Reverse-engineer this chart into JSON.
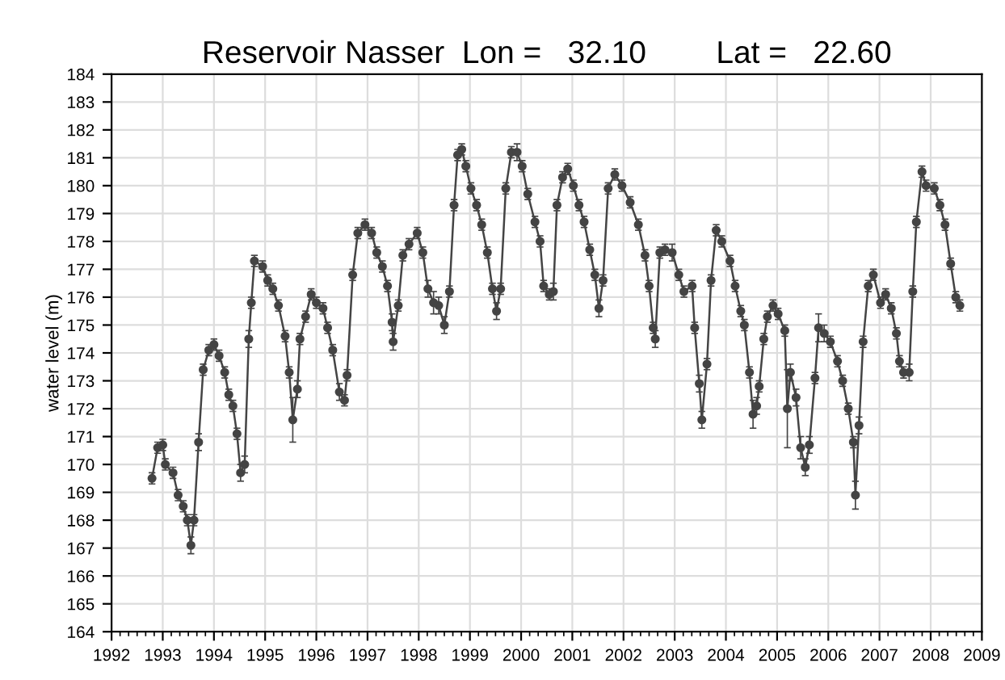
{
  "chart_data": {
    "type": "line",
    "title": "Reservoir Nasser  Lon =   32.10        Lat =   22.60",
    "ylabel": "water level (m)",
    "x": [
      1992.79,
      1992.9,
      1993.0,
      1993.05,
      1993.2,
      1993.3,
      1993.4,
      1993.48,
      1993.55,
      1993.61,
      1993.7,
      1993.79,
      1993.9,
      1994.0,
      1994.1,
      1994.21,
      1994.29,
      1994.37,
      1994.45,
      1994.52,
      1994.6,
      1994.68,
      1994.73,
      1994.79,
      1994.95,
      1995.05,
      1995.15,
      1995.26,
      1995.39,
      1995.47,
      1995.54,
      1995.63,
      1995.68,
      1995.79,
      1995.9,
      1996.0,
      1996.13,
      1996.22,
      1996.32,
      1996.45,
      1996.55,
      1996.6,
      1996.71,
      1996.81,
      1996.95,
      1997.08,
      1997.18,
      1997.29,
      1997.39,
      1997.48,
      1997.5,
      1997.6,
      1997.69,
      1997.81,
      1997.97,
      1998.08,
      1998.18,
      1998.29,
      1998.39,
      1998.5,
      1998.6,
      1998.69,
      1998.76,
      1998.84,
      1998.92,
      1999.02,
      1999.13,
      1999.23,
      1999.34,
      1999.44,
      1999.52,
      1999.6,
      1999.7,
      1999.81,
      1999.92,
      2000.02,
      2000.13,
      2000.27,
      2000.37,
      2000.44,
      2000.55,
      2000.63,
      2000.7,
      2000.81,
      2000.91,
      2001.02,
      2001.13,
      2001.23,
      2001.34,
      2001.44,
      2001.52,
      2001.6,
      2001.7,
      2001.83,
      2001.97,
      2002.13,
      2002.29,
      2002.42,
      2002.5,
      2002.58,
      2002.62,
      2002.71,
      2002.81,
      2002.95,
      2003.08,
      2003.18,
      2003.34,
      2003.39,
      2003.48,
      2003.53,
      2003.63,
      2003.71,
      2003.81,
      2003.92,
      2004.08,
      2004.18,
      2004.29,
      2004.36,
      2004.46,
      2004.53,
      2004.6,
      2004.65,
      2004.74,
      2004.81,
      2004.92,
      2005.02,
      2005.15,
      2005.2,
      2005.26,
      2005.37,
      2005.46,
      2005.55,
      2005.63,
      2005.74,
      2005.81,
      2005.92,
      2006.04,
      2006.18,
      2006.28,
      2006.39,
      2006.49,
      2006.53,
      2006.6,
      2006.68,
      2006.78,
      2006.88,
      2007.02,
      2007.12,
      2007.23,
      2007.33,
      2007.39,
      2007.47,
      2007.58,
      2007.65,
      2007.72,
      2007.83,
      2007.91,
      2008.07,
      2008.18,
      2008.28,
      2008.39,
      2008.49,
      2008.57
    ],
    "series": [
      {
        "color": "#444444",
        "values": [
          169.5,
          170.6,
          170.7,
          170.0,
          169.7,
          168.9,
          168.5,
          168.0,
          167.1,
          168.0,
          170.8,
          173.4,
          174.1,
          174.3,
          173.9,
          173.3,
          172.5,
          172.1,
          171.1,
          169.7,
          170.0,
          174.5,
          175.8,
          177.3,
          177.1,
          176.6,
          176.3,
          175.7,
          174.6,
          173.3,
          171.6,
          172.7,
          174.5,
          175.3,
          176.1,
          175.8,
          175.6,
          174.9,
          174.1,
          172.6,
          172.3,
          173.2,
          176.8,
          178.3,
          178.6,
          178.3,
          177.6,
          177.1,
          176.4,
          175.1,
          174.4,
          175.7,
          177.5,
          177.9,
          178.3,
          177.6,
          176.3,
          175.8,
          175.7,
          175.0,
          176.2,
          179.3,
          181.1,
          181.3,
          180.7,
          179.9,
          179.3,
          178.6,
          177.6,
          176.3,
          175.5,
          176.3,
          179.9,
          181.2,
          181.2,
          180.7,
          179.7,
          178.7,
          178.0,
          176.4,
          176.1,
          176.2,
          179.3,
          180.3,
          180.6,
          180.0,
          179.3,
          178.7,
          177.7,
          176.8,
          175.6,
          176.6,
          179.9,
          180.4,
          180.0,
          179.4,
          178.6,
          177.5,
          176.4,
          174.9,
          174.5,
          177.6,
          177.7,
          177.6,
          176.8,
          176.2,
          176.4,
          174.9,
          172.9,
          171.6,
          173.6,
          176.6,
          178.4,
          178.0,
          177.3,
          176.4,
          175.5,
          175.0,
          173.3,
          171.8,
          172.1,
          172.8,
          174.5,
          175.3,
          175.7,
          175.4,
          174.8,
          172.0,
          173.3,
          172.4,
          170.6,
          169.9,
          170.7,
          173.1,
          174.9,
          174.7,
          174.4,
          173.7,
          173.0,
          172.0,
          170.8,
          168.9,
          171.4,
          174.4,
          176.4,
          176.8,
          175.8,
          176.1,
          175.6,
          174.7,
          173.7,
          173.3,
          173.3,
          176.2,
          178.7,
          180.5,
          180.0,
          179.9,
          179.3,
          178.6,
          177.2,
          176.0,
          175.7
        ],
        "errors": [
          0.2,
          0.2,
          0.2,
          0.2,
          0.2,
          0.2,
          0.2,
          0.2,
          0.3,
          0.2,
          0.3,
          0.2,
          0.2,
          0.2,
          0.2,
          0.2,
          0.2,
          0.2,
          0.2,
          0.3,
          0.3,
          0.3,
          0.2,
          0.2,
          0.2,
          0.2,
          0.2,
          0.2,
          0.2,
          0.2,
          0.8,
          0.3,
          0.2,
          0.2,
          0.2,
          0.2,
          0.2,
          0.2,
          0.2,
          0.3,
          0.2,
          0.2,
          0.2,
          0.2,
          0.2,
          0.2,
          0.2,
          0.2,
          0.2,
          0.3,
          0.3,
          0.2,
          0.2,
          0.2,
          0.2,
          0.2,
          0.3,
          0.4,
          0.3,
          0.3,
          0.2,
          0.2,
          0.2,
          0.2,
          0.2,
          0.2,
          0.2,
          0.2,
          0.2,
          0.2,
          0.3,
          0.2,
          0.2,
          0.2,
          0.3,
          0.2,
          0.2,
          0.2,
          0.2,
          0.2,
          0.2,
          0.3,
          0.2,
          0.2,
          0.2,
          0.2,
          0.2,
          0.2,
          0.2,
          0.2,
          0.3,
          0.2,
          0.2,
          0.2,
          0.2,
          0.2,
          0.2,
          0.2,
          0.2,
          0.2,
          0.3,
          0.2,
          0.2,
          0.3,
          0.2,
          0.2,
          0.2,
          0.2,
          0.3,
          0.3,
          0.2,
          0.2,
          0.2,
          0.2,
          0.2,
          0.2,
          0.2,
          0.2,
          0.2,
          0.5,
          0.3,
          0.2,
          0.2,
          0.2,
          0.2,
          0.2,
          0.2,
          1.4,
          0.3,
          0.3,
          0.4,
          0.3,
          0.3,
          0.2,
          0.5,
          0.3,
          0.2,
          0.2,
          0.2,
          0.2,
          0.2,
          0.5,
          0.3,
          0.2,
          0.2,
          0.2,
          0.2,
          0.2,
          0.2,
          0.2,
          0.2,
          0.2,
          0.3,
          0.2,
          0.2,
          0.2,
          0.2,
          0.2,
          0.2,
          0.2,
          0.2,
          0.2,
          0.2
        ]
      }
    ],
    "xlim": [
      1992,
      2009
    ],
    "xticks": [
      1992,
      1993,
      1994,
      1995,
      1996,
      1997,
      1998,
      1999,
      2000,
      2001,
      2002,
      2003,
      2004,
      2005,
      2006,
      2007,
      2008,
      2009
    ],
    "ylim": [
      164,
      184
    ],
    "yticks": [
      164,
      165,
      166,
      167,
      168,
      169,
      170,
      171,
      172,
      173,
      174,
      175,
      176,
      177,
      178,
      179,
      180,
      181,
      182,
      183,
      184
    ],
    "grid": true,
    "marker": "circle",
    "line_style": "solid"
  }
}
